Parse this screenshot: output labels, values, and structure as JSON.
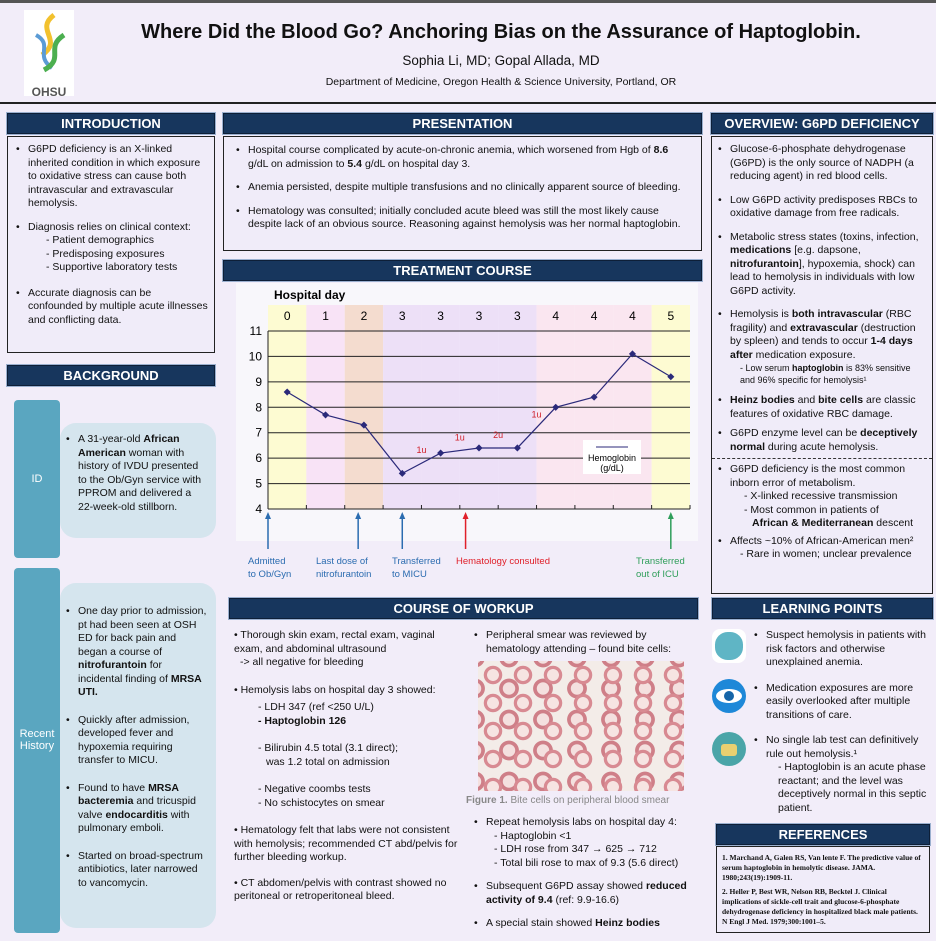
{
  "header": {
    "title": "Where Did the Blood Go? Anchoring Bias on the Assurance of Haptoglobin.",
    "authors": "Sophia Li, MD; Gopal Allada, MD",
    "department": "Department of Medicine, Oregon Health & Science University, Portland, OR",
    "logo_text": "OHSU"
  },
  "intro": {
    "heading": "INTRODUCTION",
    "b1": "G6PD deficiency is an X-linked inherited condition in which exposure to oxidative stress can cause both intravascular and extravascular hemolysis.",
    "b2": "Diagnosis relies on clinical context:",
    "s1": "- Patient demographics",
    "s2": "- Predisposing exposures",
    "s3": "- Supportive laboratory tests",
    "b3": "Accurate diagnosis can be confounded by multiple acute illnesses and conflicting data."
  },
  "background": {
    "heading": "BACKGROUND",
    "id_tab": "ID",
    "id_t1": "A 31-year-old ",
    "id_b1": "African American",
    "id_t2": " woman with history of IVDU presented to the Ob/Gyn service with PPROM and delivered a 22-week-old stillborn.",
    "hist_tab": "Recent History",
    "h1a": "One day prior to admission, pt had been seen at OSH ED for back pain and began a course of ",
    "h1b": "nitrofurantoin",
    "h1c": " for incidental finding of ",
    "h1d": "MRSA UTI.",
    "h2": "Quickly after admission, developed fever and hypoxemia requiring transfer to MICU.",
    "h3a": "Found to have ",
    "h3b": "MRSA bacteremia",
    "h3c": " and tricuspid valve ",
    "h3d": "endocarditis",
    "h3e": " with pulmonary emboli.",
    "h4": "Started on broad-spectrum antibiotics, later narrowed to vancomycin."
  },
  "presentation": {
    "heading": "PRESENTATION",
    "b1a": "Hospital course complicated by acute-on-chronic anemia, which worsened from Hgb of ",
    "b1b": "8.6",
    "b1c": " g/dL on admission to ",
    "b1d": "5.4",
    "b1e": " g/dL on hospital day 3.",
    "b2": "Anemia persisted, despite multiple transfusions and no clinically apparent source of bleeding.",
    "b3": "Hematology was consulted; initially concluded acute bleed was still the most likely cause despite lack of an obvious source. Reasoning against hemolysis was her normal haptoglobin."
  },
  "treatment": {
    "heading": "TREATMENT COURSE"
  },
  "chart_data": {
    "type": "line",
    "title": "Hospital day",
    "categories": [
      "0",
      "1",
      "2",
      "3",
      "3",
      "3",
      "3",
      "4",
      "4",
      "4",
      "5"
    ],
    "series": [
      {
        "name": "Hemoglobin (g/dL)",
        "values": [
          8.6,
          7.7,
          7.3,
          5.4,
          6.2,
          6.4,
          6.4,
          8.0,
          8.4,
          10.1,
          9.2
        ]
      }
    ],
    "ylim": [
      4,
      11
    ],
    "yticks": [
      "4",
      "5",
      "6",
      "7",
      "8",
      "9",
      "10",
      "11"
    ],
    "legend_line1": "Hemoglobin",
    "legend_line2": "(g/dL)",
    "legend": "right",
    "transfusions": [
      {
        "label": "1u",
        "after_index": 3
      },
      {
        "label": "1u",
        "after_index": 4
      },
      {
        "label": "2u",
        "after_index": 5
      },
      {
        "label": "1u",
        "after_index": 6
      }
    ],
    "band_colors": [
      "#fdfbd2",
      "#f8e3f6",
      "#f4dccf",
      "#ede0f7",
      "#ede0f7",
      "#ede0f7",
      "#ede0f7",
      "#fae6f0",
      "#fae6f0",
      "#fae6f0",
      "#fdfbd2"
    ],
    "events": [
      {
        "line1": "Admitted",
        "line2": "to Ob/Gyn",
        "position": 0,
        "color": "#2b6cb0"
      },
      {
        "line1": "Last dose of",
        "line2": "nitrofurantoin",
        "position": 2.35,
        "color": "#2b6cb0"
      },
      {
        "line1": "Transferred",
        "line2": "to MICU",
        "position": 3.5,
        "color": "#2b6cb0"
      },
      {
        "line1": "Hematology consulted",
        "line2": "",
        "position": 5.15,
        "color": "#e0202a"
      },
      {
        "line1": "Transferred",
        "line2": "out of ICU",
        "position": 10.5,
        "color": "#2f9e5a"
      }
    ]
  },
  "workup": {
    "heading": "COURSE OF WORKUP",
    "l1": "• Thorough skin exam, rectal exam, vaginal exam, and abdominal ultrasound",
    "l1b": "-> all negative for bleeding",
    "l2": "• Hemolysis labs on hospital day 3 showed:",
    "l3": "- LDH 347 (ref <250 U/L)",
    "l4": "- Haptoglobin 126",
    "l5": "- Bilirubin 4.5 total (3.1 direct);",
    "l5b": "was 1.2 total on admission",
    "l6": "- Negative coombs tests",
    "l7": "- No schistocytes on smear",
    "l8": "• Hematology felt that labs were not consistent with hemolysis; recommended CT abd/pelvis for further bleeding workup.",
    "l9": "• CT abdomen/pelvis with contrast showed no peritoneal or retroperitoneal bleed.",
    "r1": "Peripheral smear was reviewed by hematology attending – found bite cells:",
    "fig_label": "Figure 1.",
    "fig_caption": " Bite cells on peripheral blood smear",
    "r2": "Repeat hemolysis labs on hospital day 4:",
    "r2a": "- Haptoglobin <1",
    "r2b": "- LDH rose from 347 → 625 → 712",
    "r2c": "- Total bili rose to max of 9.3 (5.6 direct)",
    "r3a": "Subsequent G6PD assay showed ",
    "r3b": "reduced activity of 9.4",
    "r3c": " (ref: 9.9-16.6)",
    "r4a": "A special stain showed ",
    "r4b": "Heinz bodies"
  },
  "overview": {
    "heading": "OVERVIEW:  G6PD DEFICIENCY",
    "b1": "Glucose-6-phosphate dehydrogenase (G6PD) is the only source of NADPH (a reducing agent) in red blood cells.",
    "b2": "Low G6PD activity predisposes RBCs to oxidative damage from free radicals.",
    "b3a": "Metabolic stress states (toxins, infection, ",
    "b3b": "medications",
    "b3c": " [e.g. dapsone, ",
    "b3d": "nitrofurantoin",
    "b3e": "], hypoxemia, shock) can lead to hemolysis in individuals with low G6PD activity.",
    "b4a": "Hemolysis is ",
    "b4b": "both intravascular",
    "b4c": " (RBC fragility) and ",
    "b4d": "extravascular",
    "b4e": " (destruction by spleen) and tends to occur ",
    "b4f": "1-4 days after",
    "b4g": " medication exposure.",
    "b4s1": "- Low serum ",
    "b4s2": "haptoglobin",
    "b4s3": " is 83% sensitive and 96% specific for hemolysis¹",
    "b5a": "Heinz bodies",
    "b5b": " and ",
    "b5c": "bite cells",
    "b5d": " are classic features of oxidative RBC damage.",
    "b6a": "G6PD enzyme level can be ",
    "b6b": "deceptively normal",
    "b6c": " during acute hemolysis.",
    "b7": "G6PD deficiency is the most common inborn error of metabolism.",
    "b7s1": "- X-linked recessive transmission",
    "b7s2": "- Most common in patients of",
    "b7s3": "African & Mediterranean",
    "b7s4": " descent",
    "b8": "Affects ~10% of African-American men²",
    "b8s": "- Rare in women; unclear prevalence"
  },
  "learning": {
    "heading": "LEARNING POINTS",
    "p1": "Suspect hemolysis in patients with risk factors and otherwise unexplained anemia.",
    "p2": "Medication exposures are more easily overlooked after multiple transitions of care.",
    "p3": "No single lab test can definitively rule out hemolysis.¹",
    "p3s": "- Haptoglobin is an acute phase reactant; and the level was deceptively normal in this septic patient."
  },
  "references": {
    "heading": "REFERENCES",
    "r1": "1. Marchand A, Galen RS, Van lente F. The predictive value of serum haptoglobin in hemolytic disease. JAMA. 1980;243(19):1909-11.",
    "r2": "2. Heller P, Best WR, Nelson RB, Becktel J. Clinical implications of sickle-cell trait and glucose-6-phosphate dehydrogenase deficiency in hospitalized black male patients. N Engl J Med. 1979;300:1001–5."
  }
}
